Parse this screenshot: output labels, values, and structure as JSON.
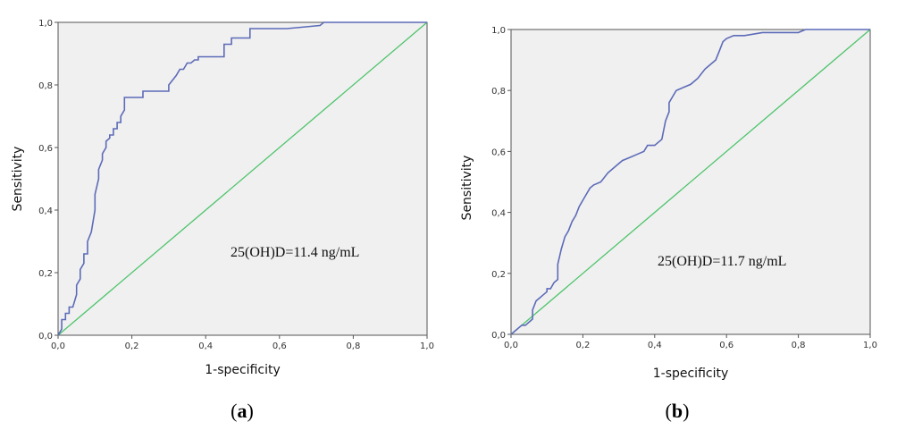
{
  "chart_data": [
    {
      "type": "line",
      "panel_label_open": "(",
      "panel_label_letter": "a",
      "panel_label_close": ")",
      "title": "",
      "xlabel": "1-specificity",
      "ylabel": "Sensitivity",
      "xlim": [
        0,
        1
      ],
      "ylim": [
        0,
        1
      ],
      "x_ticks": [
        "0,0",
        "0,2",
        "0,4",
        "0,6",
        "0,8",
        "1,0"
      ],
      "y_ticks": [
        "0,0",
        "0,2",
        "0,4",
        "0,6",
        "0,8",
        "1,0"
      ],
      "annotation": "25(OH)D=11.4 ng/mL",
      "colors": {
        "roc": "#5c6bb8",
        "reference": "#4cc46a",
        "plot_bg": "#f0f0f0"
      },
      "series": [
        {
          "name": "ROC",
          "x": [
            0.0,
            0.01,
            0.01,
            0.02,
            0.02,
            0.03,
            0.03,
            0.04,
            0.05,
            0.05,
            0.06,
            0.06,
            0.07,
            0.07,
            0.08,
            0.08,
            0.09,
            0.09,
            0.1,
            0.1,
            0.11,
            0.11,
            0.12,
            0.12,
            0.13,
            0.13,
            0.14,
            0.14,
            0.15,
            0.15,
            0.16,
            0.16,
            0.17,
            0.17,
            0.18,
            0.18,
            0.19,
            0.2,
            0.21,
            0.22,
            0.23,
            0.23,
            0.3,
            0.3,
            0.32,
            0.33,
            0.34,
            0.35,
            0.36,
            0.37,
            0.38,
            0.38,
            0.45,
            0.45,
            0.47,
            0.47,
            0.52,
            0.52,
            0.62,
            0.62,
            0.71,
            0.72,
            1.0
          ],
          "y": [
            0.0,
            0.02,
            0.05,
            0.05,
            0.07,
            0.07,
            0.09,
            0.09,
            0.13,
            0.16,
            0.18,
            0.21,
            0.23,
            0.26,
            0.26,
            0.3,
            0.33,
            0.33,
            0.4,
            0.45,
            0.5,
            0.53,
            0.56,
            0.58,
            0.6,
            0.62,
            0.63,
            0.64,
            0.64,
            0.66,
            0.66,
            0.68,
            0.68,
            0.7,
            0.72,
            0.76,
            0.76,
            0.76,
            0.76,
            0.76,
            0.76,
            0.78,
            0.78,
            0.8,
            0.83,
            0.85,
            0.85,
            0.87,
            0.87,
            0.88,
            0.88,
            0.89,
            0.89,
            0.93,
            0.93,
            0.95,
            0.95,
            0.98,
            0.98,
            0.98,
            0.99,
            1.0,
            1.0
          ]
        },
        {
          "name": "Reference",
          "x": [
            0,
            1
          ],
          "y": [
            0,
            1
          ]
        }
      ]
    },
    {
      "type": "line",
      "panel_label_open": "(",
      "panel_label_letter": "b",
      "panel_label_close": ")",
      "title": "",
      "xlabel": "1-specificity",
      "ylabel": "Sensitivity",
      "xlim": [
        0,
        1
      ],
      "ylim": [
        0,
        1
      ],
      "x_ticks": [
        "0,0",
        "0,2",
        "0,4",
        "0,6",
        "0,8",
        "1,0"
      ],
      "y_ticks": [
        "0,0",
        "0,2",
        "0,4",
        "0,6",
        "0,8",
        "1,0"
      ],
      "annotation": "25(OH)D=11.7 ng/mL",
      "colors": {
        "roc": "#5c6bb8",
        "reference": "#4cc46a",
        "plot_bg": "#f0f0f0"
      },
      "series": [
        {
          "name": "ROC",
          "x": [
            0.0,
            0.01,
            0.02,
            0.03,
            0.04,
            0.05,
            0.06,
            0.06,
            0.07,
            0.08,
            0.09,
            0.1,
            0.1,
            0.11,
            0.12,
            0.13,
            0.13,
            0.14,
            0.15,
            0.16,
            0.17,
            0.18,
            0.19,
            0.2,
            0.21,
            0.22,
            0.23,
            0.25,
            0.27,
            0.29,
            0.31,
            0.33,
            0.35,
            0.37,
            0.38,
            0.4,
            0.41,
            0.42,
            0.43,
            0.44,
            0.44,
            0.45,
            0.46,
            0.48,
            0.5,
            0.52,
            0.54,
            0.55,
            0.57,
            0.58,
            0.59,
            0.6,
            0.62,
            0.65,
            0.7,
            0.75,
            0.8,
            0.82,
            0.9,
            1.0
          ],
          "y": [
            0.0,
            0.01,
            0.02,
            0.03,
            0.03,
            0.04,
            0.05,
            0.08,
            0.11,
            0.12,
            0.13,
            0.14,
            0.15,
            0.15,
            0.17,
            0.18,
            0.23,
            0.28,
            0.32,
            0.34,
            0.37,
            0.39,
            0.42,
            0.44,
            0.46,
            0.48,
            0.49,
            0.5,
            0.53,
            0.55,
            0.57,
            0.58,
            0.59,
            0.6,
            0.62,
            0.62,
            0.63,
            0.64,
            0.7,
            0.73,
            0.76,
            0.78,
            0.8,
            0.81,
            0.82,
            0.84,
            0.87,
            0.88,
            0.9,
            0.93,
            0.96,
            0.97,
            0.98,
            0.98,
            0.99,
            0.99,
            0.99,
            1.0,
            1.0,
            1.0
          ]
        },
        {
          "name": "Reference",
          "x": [
            0,
            1
          ],
          "y": [
            0,
            1
          ]
        }
      ]
    }
  ]
}
